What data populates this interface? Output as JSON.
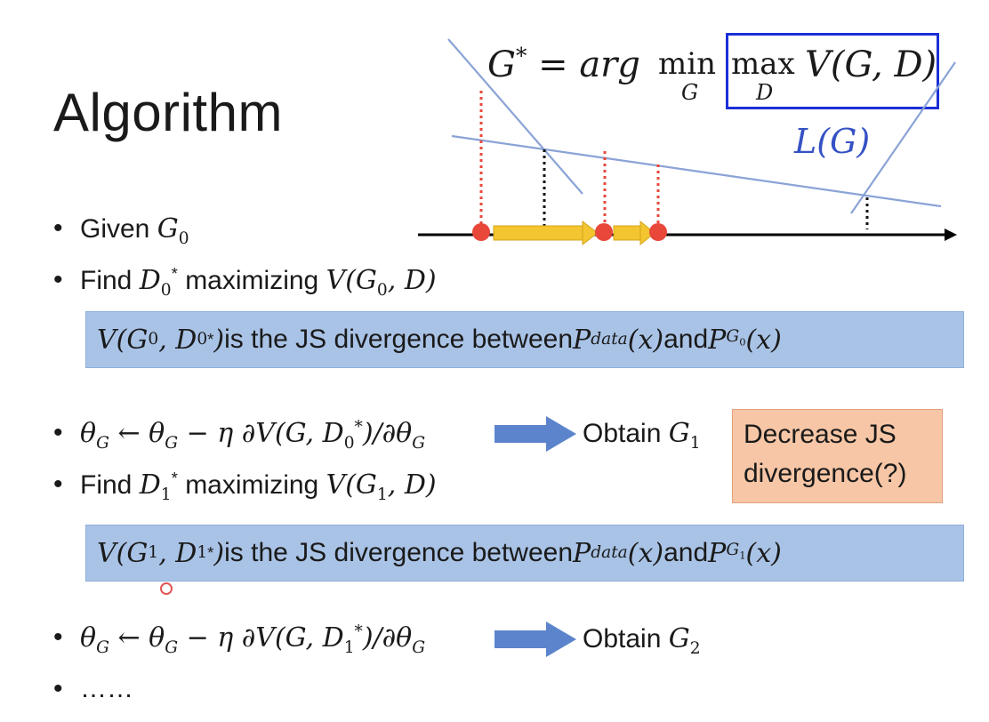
{
  "title": "Algorithm",
  "formula": {
    "lhs": "G",
    "lhs_sup": "*",
    "eq": " = ",
    "arg": "arg",
    "min": "min",
    "min_sub": "G",
    "max": "max",
    "max_sub": "D",
    "v": "V(G, D)"
  },
  "diagram": {
    "loss_label": "L(G)"
  },
  "bullets": {
    "b1": {
      "text": "Given ",
      "math": "G",
      "sub": "0"
    },
    "b2": {
      "text": "Find ",
      "d": "D",
      "d_sub": "0",
      "d_sup": "*",
      "text2": " maximizing ",
      "v": "V(G",
      "v_sub": "0",
      "v_rest": ", D)"
    },
    "box1": {
      "m1": "V(G",
      "m1_sub": "0",
      "m1_mid": ", D",
      "m1_sub2": "0",
      "m1_sup2": "*",
      "m1_end": ")",
      "text": " is the JS divergence between ",
      "p1": "P",
      "p1_sub": "data",
      "p1_end": "(x)",
      "and": " and ",
      "p2": "P",
      "p2_sub": "G",
      "p2_subsub": "0",
      "p2_end": "(x)"
    },
    "b3": {
      "math": "θ",
      "m_sub": "G",
      "arrow": " ← ",
      "math2": "θ",
      "m2_sub": "G",
      "rest": " − η ∂V(G, D",
      "r_sub": "0",
      "r_sup": "*",
      "rest2": ")/∂θ",
      "r2_sub": "G",
      "obtain": "Obtain ",
      "g": "G",
      "g_sub": "1"
    },
    "orange_note": "Decrease JS divergence(?)",
    "b4": {
      "text": "Find ",
      "d": "D",
      "d_sub": "1",
      "d_sup": "*",
      "text2": " maximizing ",
      "v": "V(G",
      "v_sub": "1",
      "v_rest": ", D)"
    },
    "box2": {
      "m1": "V(G",
      "m1_sub": "1",
      "m1_mid": ", D",
      "m1_sub2": "1",
      "m1_sup2": "*",
      "m1_end": ")",
      "text": " is the JS divergence between ",
      "p1": "P",
      "p1_sub": "data",
      "p1_end": "(x)",
      "and": " and ",
      "p2": "P",
      "p2_sub": "G",
      "p2_subsub": "1",
      "p2_end": "(x)"
    },
    "b5": {
      "math": "θ",
      "m_sub": "G",
      "arrow": " ← ",
      "math2": "θ",
      "m2_sub": "G",
      "rest": " − η ∂V(G, D",
      "r_sub": "1",
      "r_sup": "*",
      "rest2": ")/∂θ",
      "r2_sub": "G",
      "obtain": "Obtain ",
      "g": "G",
      "g_sub": "2"
    },
    "b6": "……"
  },
  "colors": {
    "box_fill": "#a9c3e6",
    "note_fill": "#f6c6a6",
    "line_blue": "#8aa3d6",
    "arrow_blue": "#5b84cc",
    "red": "#e8473a",
    "yellow": "#f2c531",
    "highlight_box": "#1b2fd6"
  }
}
